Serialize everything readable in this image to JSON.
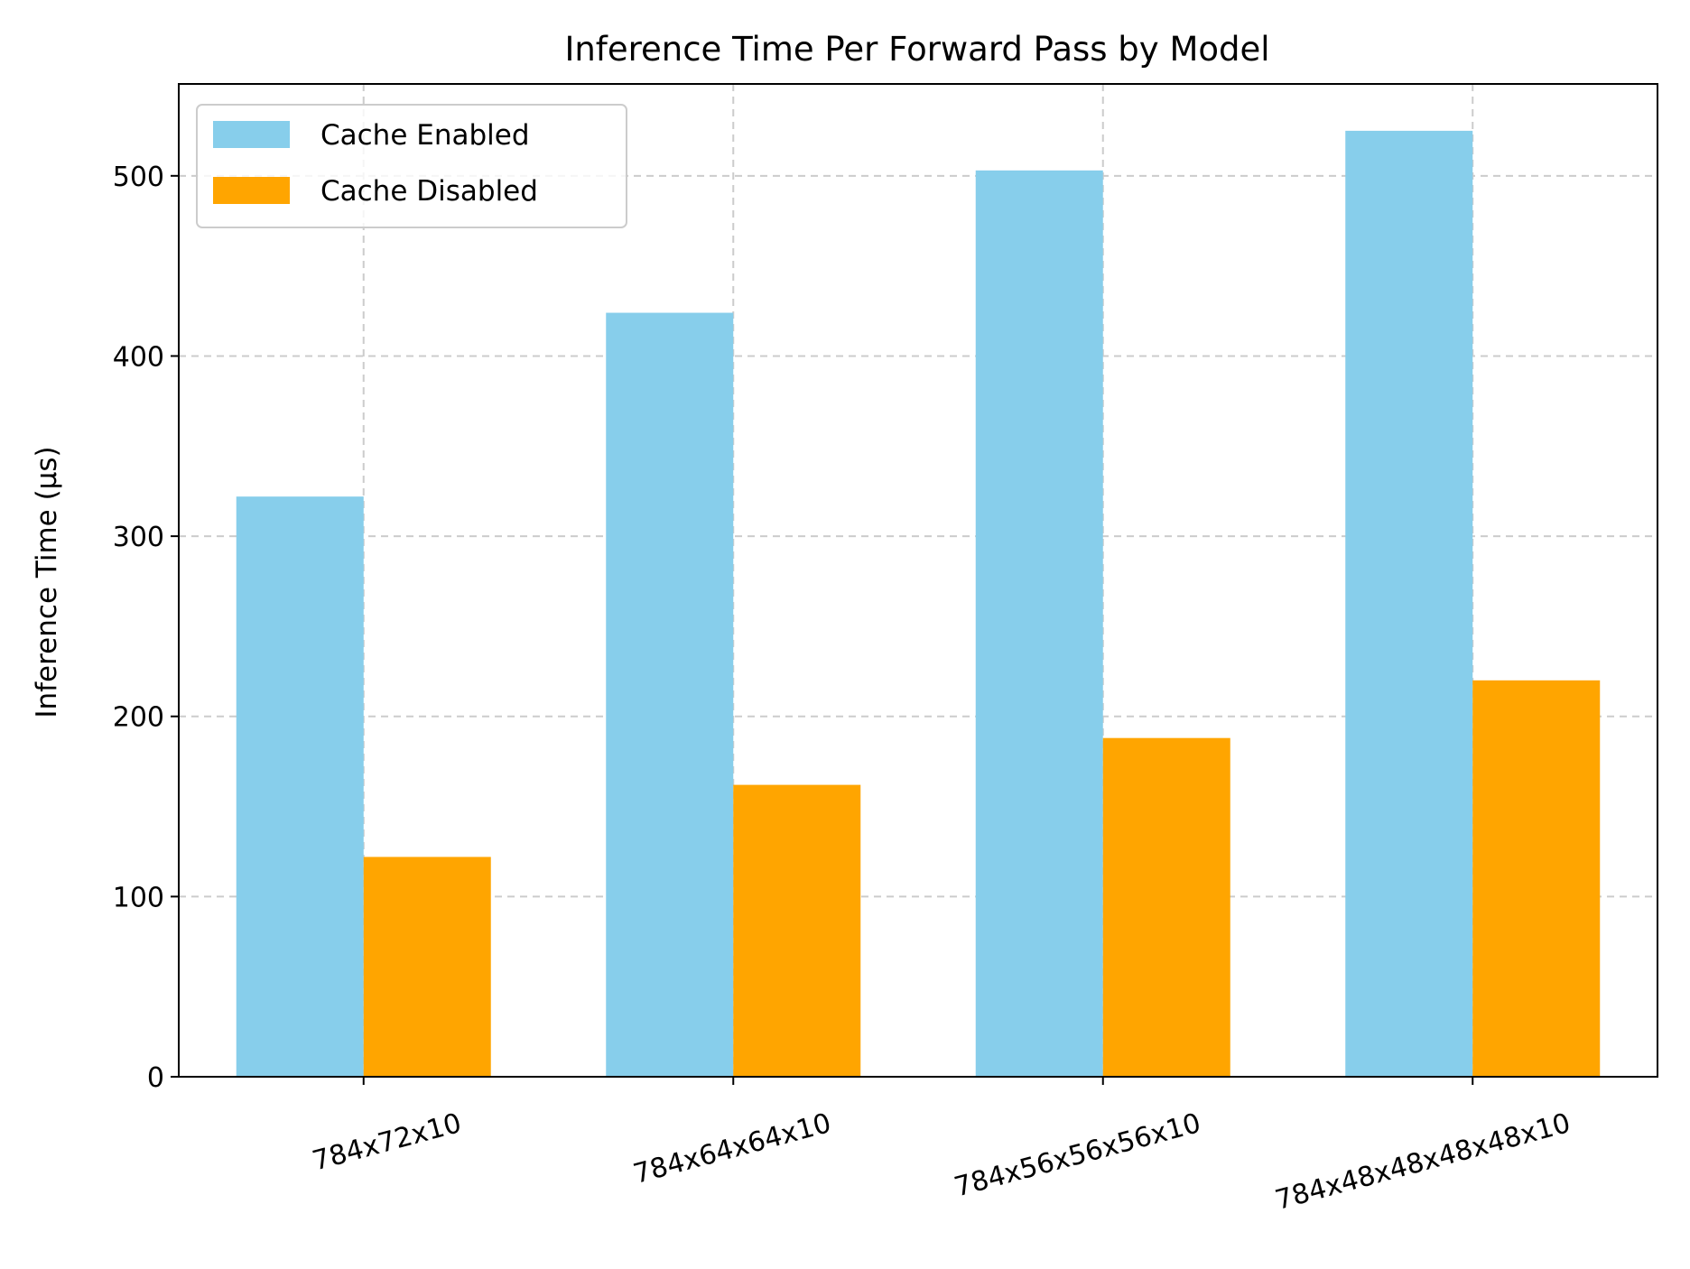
{
  "chart_data": {
    "type": "bar",
    "title": "Inference Time Per Forward Pass by Model",
    "xlabel": "",
    "ylabel": "Inference Time (µs)",
    "categories": [
      "784x72x10",
      "784x64x64x10",
      "784x56x56x56x10",
      "784x48x48x48x48x10"
    ],
    "series": [
      {
        "name": "Cache Enabled",
        "values": [
          322,
          424,
          503,
          525
        ],
        "color": "#87CEEB"
      },
      {
        "name": "Cache Disabled",
        "values": [
          122,
          162,
          188,
          220
        ],
        "color": "#FFA500"
      }
    ],
    "ylim": [
      0,
      551
    ],
    "yticks": [
      0,
      100,
      200,
      300,
      400,
      500
    ],
    "grid": true,
    "grid_style": "dashed",
    "legend_position": "top-left",
    "x_tick_rotation_deg": 15
  }
}
